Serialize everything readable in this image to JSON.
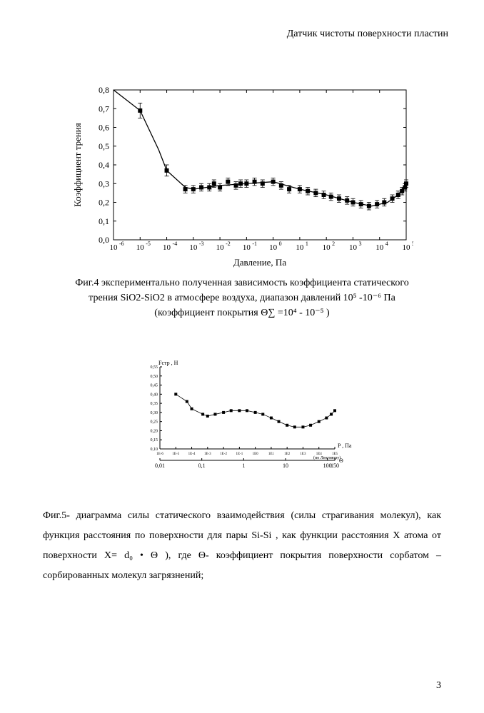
{
  "header": {
    "title": "Датчик чистоты поверхности пластин"
  },
  "chart4": {
    "type": "scatter-line",
    "ylabel": "Коэффициент трения",
    "xlabel": "Давление, Па",
    "label_fontsize": 13,
    "ylim": [
      0.0,
      0.8
    ],
    "ytick_step": 0.1,
    "yticks": [
      "0,0",
      "0,1",
      "0,2",
      "0,3",
      "0,4",
      "0,5",
      "0,6",
      "0,7",
      "0,8"
    ],
    "xlog": true,
    "xlim": [
      1e-06,
      100000.0
    ],
    "xticks_exp": [
      -6,
      -5,
      -4,
      -3,
      -2,
      -1,
      0,
      1,
      2,
      3,
      4,
      5
    ],
    "points": [
      {
        "x": 1e-05,
        "y": 0.69,
        "err": 0.04
      },
      {
        "x": 0.0001,
        "y": 0.37,
        "err": 0.03
      },
      {
        "x": 0.0005,
        "y": 0.27,
        "err": 0.02
      },
      {
        "x": 0.001,
        "y": 0.27,
        "err": 0.02
      },
      {
        "x": 0.002,
        "y": 0.28,
        "err": 0.02
      },
      {
        "x": 0.004,
        "y": 0.28,
        "err": 0.02
      },
      {
        "x": 0.006,
        "y": 0.3,
        "err": 0.02
      },
      {
        "x": 0.01,
        "y": 0.28,
        "err": 0.02
      },
      {
        "x": 0.02,
        "y": 0.31,
        "err": 0.02
      },
      {
        "x": 0.04,
        "y": 0.29,
        "err": 0.02
      },
      {
        "x": 0.06,
        "y": 0.3,
        "err": 0.02
      },
      {
        "x": 0.1,
        "y": 0.3,
        "err": 0.02
      },
      {
        "x": 0.2,
        "y": 0.31,
        "err": 0.02
      },
      {
        "x": 0.4,
        "y": 0.3,
        "err": 0.02
      },
      {
        "x": 1,
        "y": 0.31,
        "err": 0.02
      },
      {
        "x": 2,
        "y": 0.29,
        "err": 0.02
      },
      {
        "x": 4,
        "y": 0.27,
        "err": 0.02
      },
      {
        "x": 10,
        "y": 0.27,
        "err": 0.02
      },
      {
        "x": 20,
        "y": 0.26,
        "err": 0.02
      },
      {
        "x": 40,
        "y": 0.25,
        "err": 0.02
      },
      {
        "x": 80,
        "y": 0.24,
        "err": 0.02
      },
      {
        "x": 150,
        "y": 0.23,
        "err": 0.02
      },
      {
        "x": 300,
        "y": 0.22,
        "err": 0.02
      },
      {
        "x": 600,
        "y": 0.21,
        "err": 0.02
      },
      {
        "x": 1000,
        "y": 0.2,
        "err": 0.02
      },
      {
        "x": 2000,
        "y": 0.19,
        "err": 0.02
      },
      {
        "x": 4000,
        "y": 0.18,
        "err": 0.02
      },
      {
        "x": 8000,
        "y": 0.19,
        "err": 0.02
      },
      {
        "x": 15000,
        "y": 0.2,
        "err": 0.02
      },
      {
        "x": 30000,
        "y": 0.22,
        "err": 0.02
      },
      {
        "x": 50000,
        "y": 0.24,
        "err": 0.02
      },
      {
        "x": 70000,
        "y": 0.26,
        "err": 0.02
      },
      {
        "x": 90000,
        "y": 0.28,
        "err": 0.02
      },
      {
        "x": 100000.0,
        "y": 0.3,
        "err": 0.02
      }
    ],
    "curve": [
      {
        "x": 1e-06,
        "y": 0.8
      },
      {
        "x": 1e-05,
        "y": 0.69
      },
      {
        "x": 5e-05,
        "y": 0.48
      },
      {
        "x": 0.0001,
        "y": 0.37
      },
      {
        "x": 0.0005,
        "y": 0.28
      },
      {
        "x": 0.001,
        "y": 0.27
      },
      {
        "x": 0.01,
        "y": 0.29
      },
      {
        "x": 0.1,
        "y": 0.3
      },
      {
        "x": 1,
        "y": 0.31
      },
      {
        "x": 10,
        "y": 0.27
      },
      {
        "x": 100,
        "y": 0.24
      },
      {
        "x": 1000,
        "y": 0.2
      },
      {
        "x": 5000,
        "y": 0.18
      },
      {
        "x": 20000.0,
        "y": 0.2
      },
      {
        "x": 50000.0,
        "y": 0.24
      },
      {
        "x": 100000.0,
        "y": 0.3
      }
    ],
    "marker_color": "#000000",
    "marker_size": 6,
    "line_color": "#000000",
    "line_width": 1.3,
    "axis_color": "#000000",
    "background_color": "#ffffff"
  },
  "caption4": {
    "line1": "Фиг.4 экспериментально полученная зависимость  коэффициента статического",
    "line2": "трения SiO2-SiO2  в атмосфере воздуха, диапазон давлений 10⁵  -10⁻⁶  Па",
    "line3": "(коэффициент покрытия Θ∑ =10⁴ - 10⁻⁵ )"
  },
  "chart5": {
    "type": "scatter-line",
    "ylabel": "Fстр , Н",
    "ymax_label": "",
    "ylim": [
      0.1,
      0.55
    ],
    "yticks": [
      "",
      "",
      "",
      "",
      "",
      "",
      "0,40",
      "0,45",
      "0,50",
      "0,55"
    ],
    "xlog": true,
    "xlabel_right": "P , Па",
    "xlim": [
      1e-06,
      100000.0
    ],
    "xticks_top_exp": [
      -6,
      -5,
      -4,
      -3,
      -2,
      -1,
      0,
      1,
      2,
      3,
      4,
      5
    ],
    "xticks_bottom": [
      "0,01",
      "0,1",
      "1",
      "10",
      "100",
      "150"
    ],
    "bottom_axis_label": "Θ",
    "bottom_note": "(по Ленгмюру)",
    "points": [
      {
        "x": 1e-05,
        "y": 0.4
      },
      {
        "x": 5e-05,
        "y": 0.36
      },
      {
        "x": 0.0001,
        "y": 0.32
      },
      {
        "x": 0.0005,
        "y": 0.29
      },
      {
        "x": 0.001,
        "y": 0.28
      },
      {
        "x": 0.003,
        "y": 0.29
      },
      {
        "x": 0.01,
        "y": 0.3
      },
      {
        "x": 0.03,
        "y": 0.31
      },
      {
        "x": 0.1,
        "y": 0.31
      },
      {
        "x": 0.3,
        "y": 0.31
      },
      {
        "x": 1,
        "y": 0.3
      },
      {
        "x": 3,
        "y": 0.29
      },
      {
        "x": 10,
        "y": 0.27
      },
      {
        "x": 30,
        "y": 0.25
      },
      {
        "x": 100,
        "y": 0.23
      },
      {
        "x": 300,
        "y": 0.22
      },
      {
        "x": 1000,
        "y": 0.22
      },
      {
        "x": 3000,
        "y": 0.23
      },
      {
        "x": 10000.0,
        "y": 0.25
      },
      {
        "x": 30000.0,
        "y": 0.27
      },
      {
        "x": 60000.0,
        "y": 0.29
      },
      {
        "x": 100000.0,
        "y": 0.31
      }
    ],
    "marker_color": "#000000",
    "marker_size": 4,
    "line_color": "#000000",
    "line_width": 0.8,
    "axis_color": "#000000",
    "background_color": "#ffffff"
  },
  "paragraph5": {
    "text": "Фиг.5-   диаграмма    силы  статического  взаимодействия  (силы  страгивания молекул), как функция расстояния по поверхности для пары  Si-Si ,   как функции расстояния X атома от поверхности  X=  d₀  • Θ ), где Θ- коэффициент покрытия поверхности сорбатом – сорбированных молекул загрязнений;"
  },
  "page_number": "3"
}
